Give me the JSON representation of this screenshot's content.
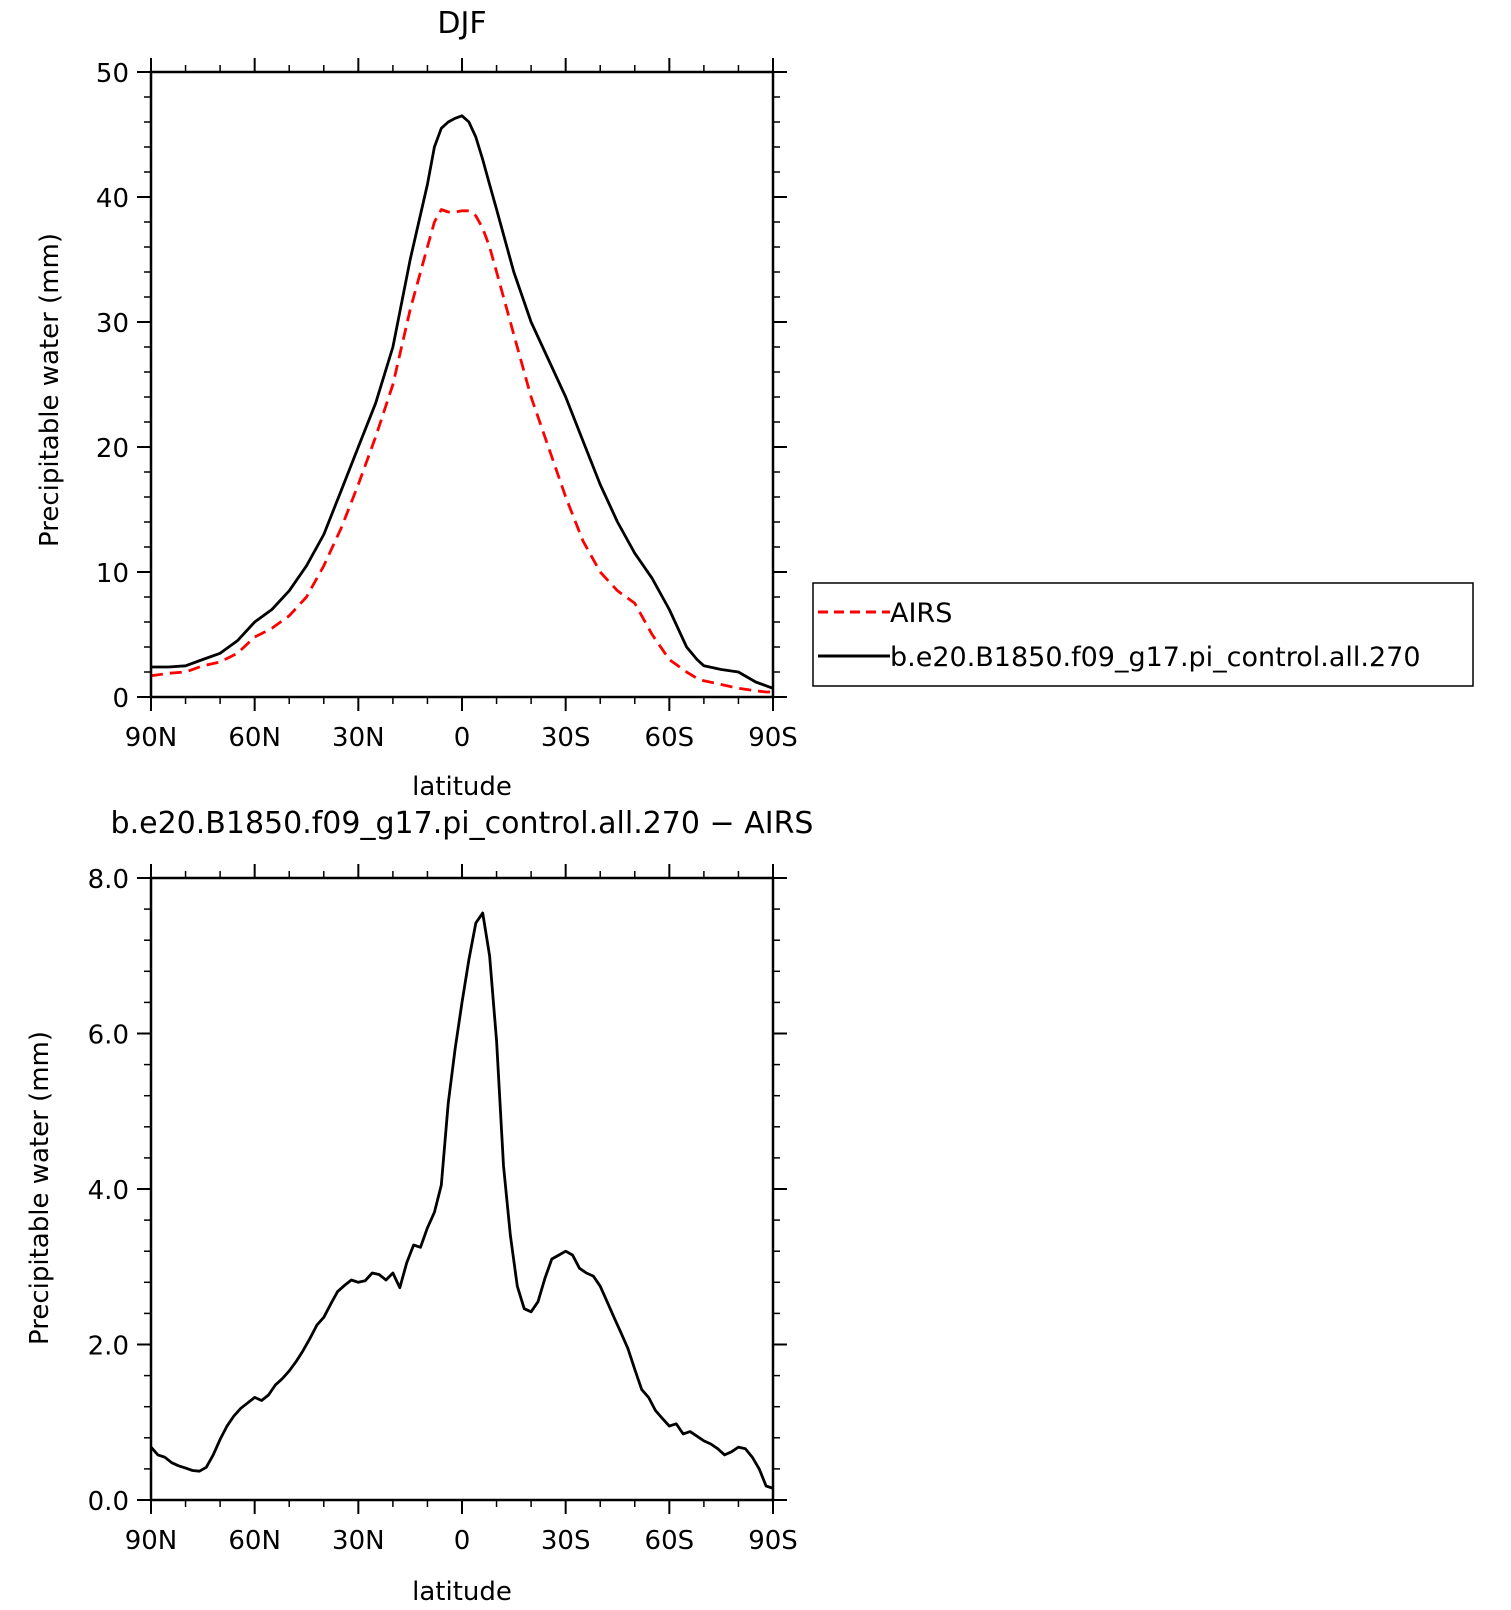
{
  "chart_data": [
    {
      "type": "line",
      "title": "DJF",
      "xlabel": "latitude",
      "ylabel": "Precipitable water (mm)",
      "xlim": [
        90,
        -90
      ],
      "ylim": [
        0,
        50
      ],
      "xticks": [
        90,
        60,
        30,
        0,
        -30,
        -60,
        -90
      ],
      "xtick_labels": [
        "90N",
        "60N",
        "30N",
        "0",
        "30S",
        "60S",
        "90S"
      ],
      "yticks": [
        0,
        10,
        20,
        30,
        40,
        50
      ],
      "ytick_labels": [
        "0",
        "10",
        "20",
        "30",
        "40",
        "50"
      ],
      "legend_position": "right",
      "series": [
        {
          "name": "AIRS",
          "color": "#ff0000",
          "style": "dashed",
          "x": [
            90,
            85,
            80,
            75,
            70,
            65,
            60,
            55,
            50,
            45,
            40,
            35,
            30,
            25,
            20,
            15,
            10,
            8,
            6,
            4,
            2,
            0,
            -2,
            -4,
            -6,
            -8,
            -10,
            -15,
            -20,
            -25,
            -30,
            -35,
            -40,
            -45,
            -50,
            -55,
            -60,
            -65,
            -68,
            -70,
            -75,
            -80,
            -85,
            -88,
            -90
          ],
          "y": [
            1.7,
            1.9,
            2.0,
            2.5,
            2.8,
            3.5,
            4.8,
            5.5,
            6.5,
            8.0,
            10.5,
            13.5,
            17.0,
            20.8,
            25.0,
            31.0,
            36.0,
            38.0,
            39.0,
            38.8,
            38.8,
            38.9,
            38.9,
            38.5,
            37.5,
            36.0,
            34.0,
            29.0,
            24.0,
            20.0,
            16.0,
            12.5,
            10.0,
            8.5,
            7.5,
            5.0,
            3.0,
            2.0,
            1.5,
            1.3,
            1.0,
            0.7,
            0.5,
            0.4,
            0.4
          ]
        },
        {
          "name": "b.e20.B1850.f09_g17.pi_control.all.270",
          "color": "#000000",
          "style": "solid",
          "x": [
            90,
            85,
            80,
            75,
            70,
            65,
            60,
            55,
            50,
            45,
            40,
            35,
            30,
            25,
            20,
            15,
            10,
            8,
            6,
            4,
            2,
            0,
            -2,
            -4,
            -6,
            -8,
            -10,
            -15,
            -20,
            -25,
            -30,
            -35,
            -40,
            -45,
            -50,
            -55,
            -60,
            -65,
            -68,
            -70,
            -75,
            -80,
            -85,
            -88,
            -90
          ],
          "y": [
            2.4,
            2.4,
            2.5,
            3.0,
            3.5,
            4.5,
            6.0,
            7.0,
            8.5,
            10.5,
            13.0,
            16.5,
            20.0,
            23.5,
            28.0,
            35.0,
            41.0,
            44.0,
            45.5,
            46.0,
            46.3,
            46.5,
            46.0,
            44.8,
            43.0,
            41.0,
            39.0,
            34.0,
            30.0,
            27.0,
            24.0,
            20.5,
            17.0,
            14.0,
            11.5,
            9.5,
            7.0,
            4.0,
            3.0,
            2.5,
            2.2,
            2.0,
            1.2,
            0.9,
            0.7
          ]
        }
      ]
    },
    {
      "type": "line",
      "title": "b.e20.B1850.f09_g17.pi_control.all.270 − AIRS",
      "xlabel": "latitude",
      "ylabel": "Precipitable water (mm)",
      "xlim": [
        90,
        -90
      ],
      "ylim": [
        0,
        8
      ],
      "xticks": [
        90,
        60,
        30,
        0,
        -30,
        -60,
        -90
      ],
      "xtick_labels": [
        "90N",
        "60N",
        "30N",
        "0",
        "30S",
        "60S",
        "90S"
      ],
      "yticks": [
        0,
        2,
        4,
        6,
        8
      ],
      "ytick_labels": [
        "0.0",
        "2.0",
        "4.0",
        "6.0",
        "8.0"
      ],
      "series": [
        {
          "color": "#000000",
          "style": "solid",
          "x": [
            90,
            88,
            86,
            84,
            82,
            80,
            78,
            76,
            74,
            72,
            70,
            68,
            66,
            64,
            62,
            60,
            58,
            56,
            54,
            52,
            50,
            48,
            46,
            44,
            42,
            40,
            38,
            36,
            34,
            32,
            30,
            28,
            26,
            24,
            22,
            20,
            18,
            16,
            14,
            12,
            10,
            8,
            6,
            4,
            2,
            0,
            -2,
            -4,
            -6,
            -8,
            -10,
            -12,
            -14,
            -16,
            -18,
            -20,
            -22,
            -24,
            -26,
            -28,
            -30,
            -32,
            -34,
            -36,
            -38,
            -40,
            -42,
            -44,
            -46,
            -48,
            -50,
            -52,
            -54,
            -56,
            -58,
            -60,
            -62,
            -64,
            -66,
            -68,
            -70,
            -72,
            -74,
            -76,
            -78,
            -80,
            -82,
            -84,
            -86,
            -88,
            -90
          ],
          "y": [
            0.68,
            0.58,
            0.55,
            0.48,
            0.44,
            0.41,
            0.38,
            0.37,
            0.42,
            0.58,
            0.78,
            0.95,
            1.08,
            1.18,
            1.25,
            1.32,
            1.28,
            1.35,
            1.48,
            1.56,
            1.66,
            1.78,
            1.92,
            2.08,
            2.25,
            2.35,
            2.52,
            2.68,
            2.76,
            2.83,
            2.8,
            2.82,
            2.92,
            2.9,
            2.83,
            2.92,
            2.73,
            3.05,
            3.28,
            3.25,
            3.5,
            3.7,
            4.05,
            5.1,
            5.8,
            6.4,
            6.95,
            7.42,
            7.55,
            7.0,
            5.9,
            4.3,
            3.4,
            2.75,
            2.46,
            2.42,
            2.55,
            2.85,
            3.1,
            3.15,
            3.2,
            3.15,
            2.98,
            2.92,
            2.88,
            2.75,
            2.55,
            2.35,
            2.15,
            1.95,
            1.68,
            1.42,
            1.32,
            1.15,
            1.05,
            0.95,
            0.98,
            0.85,
            0.88,
            0.82,
            0.76,
            0.72,
            0.66,
            0.58,
            0.62,
            0.68,
            0.66,
            0.55,
            0.4,
            0.18,
            0.15
          ]
        }
      ]
    }
  ]
}
